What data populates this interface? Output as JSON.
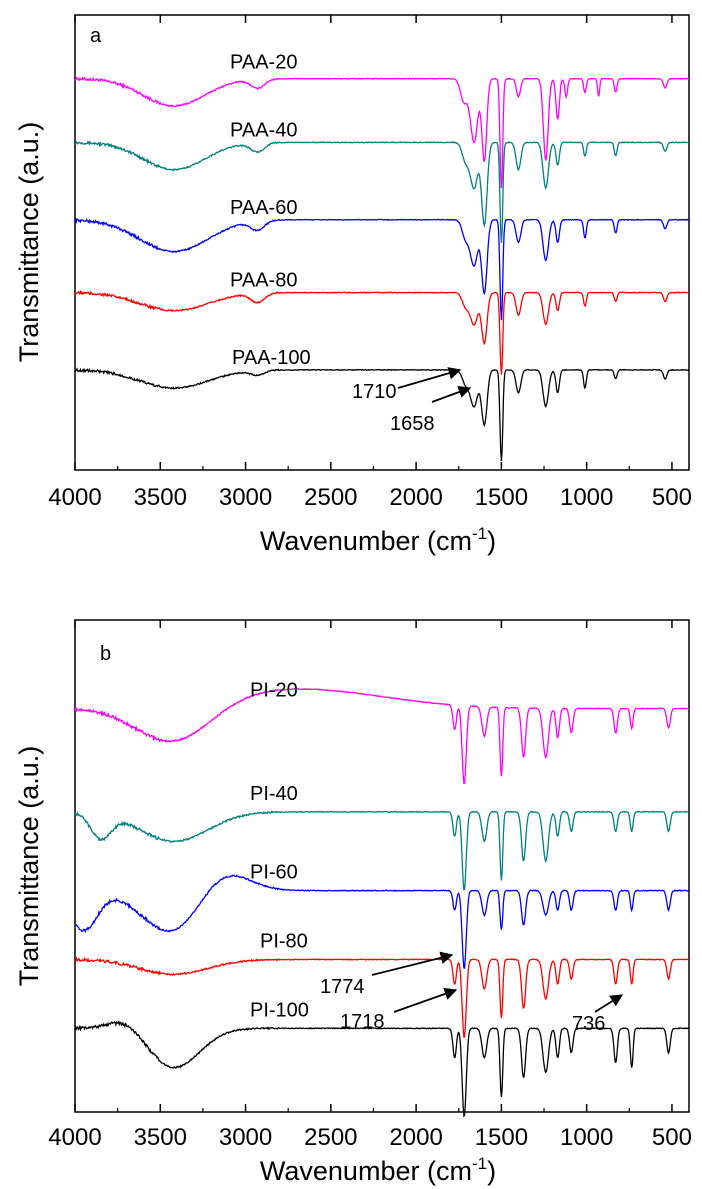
{
  "chart_data": [
    {
      "type": "line",
      "panel": "a",
      "xlabel": "Wavenumber (cm",
      "xlabel_sup": "-1",
      "xlabel_close": ")",
      "ylabel": "Transmittance (a.u.)",
      "xlim": [
        4000,
        400
      ],
      "x_reversed": true,
      "y_ticks_shown": false,
      "xticks": [
        4000,
        3500,
        3000,
        2500,
        2000,
        1500,
        1000,
        500
      ],
      "series": [
        {
          "name": "PAA-20",
          "color": "#ff00ff",
          "baseline": 0.86,
          "broad": [
            [
              3420,
              0.06,
              180
            ],
            [
              2930,
              0.02,
              40
            ]
          ],
          "peaks": [
            [
              1720,
              0.05,
              20
            ],
            [
              1660,
              0.14,
              22
            ],
            [
              1600,
              0.18,
              14
            ],
            [
              1500,
              0.24,
              8
            ],
            [
              1400,
              0.04,
              12
            ],
            [
              1240,
              0.18,
              14
            ],
            [
              1170,
              0.09,
              10
            ],
            [
              1120,
              0.04,
              8
            ],
            [
              1010,
              0.03,
              8
            ],
            [
              930,
              0.04,
              6
            ],
            [
              830,
              0.03,
              8
            ],
            [
              540,
              0.02,
              10
            ]
          ]
        },
        {
          "name": "PAA-40",
          "color": "#008080",
          "baseline": 0.72,
          "broad": [
            [
              3420,
              0.06,
              180
            ],
            [
              2930,
              0.02,
              40
            ]
          ],
          "peaks": [
            [
              1710,
              0.04,
              20
            ],
            [
              1660,
              0.1,
              22
            ],
            [
              1600,
              0.18,
              16
            ],
            [
              1500,
              0.22,
              8
            ],
            [
              1400,
              0.06,
              14
            ],
            [
              1240,
              0.1,
              16
            ],
            [
              1170,
              0.05,
              10
            ],
            [
              1010,
              0.03,
              8
            ],
            [
              830,
              0.03,
              8
            ],
            [
              540,
              0.02,
              10
            ]
          ]
        },
        {
          "name": "PAA-60",
          "color": "#0000ff",
          "baseline": 0.55,
          "broad": [
            [
              3420,
              0.07,
              200
            ],
            [
              2930,
              0.02,
              40
            ]
          ],
          "peaks": [
            [
              1710,
              0.04,
              20
            ],
            [
              1660,
              0.1,
              22
            ],
            [
              1600,
              0.16,
              16
            ],
            [
              1500,
              0.22,
              8
            ],
            [
              1400,
              0.05,
              14
            ],
            [
              1240,
              0.09,
              16
            ],
            [
              1170,
              0.05,
              10
            ],
            [
              1010,
              0.04,
              8
            ],
            [
              830,
              0.03,
              8
            ],
            [
              540,
              0.02,
              10
            ]
          ]
        },
        {
          "name": "PAA-80",
          "color": "#ff0000",
          "baseline": 0.39,
          "broad": [
            [
              3420,
              0.04,
              200
            ],
            [
              2930,
              0.02,
              40
            ]
          ],
          "peaks": [
            [
              1710,
              0.03,
              20
            ],
            [
              1660,
              0.07,
              22
            ],
            [
              1600,
              0.11,
              16
            ],
            [
              1500,
              0.18,
              8
            ],
            [
              1400,
              0.05,
              14
            ],
            [
              1240,
              0.07,
              16
            ],
            [
              1170,
              0.04,
              10
            ],
            [
              1010,
              0.03,
              8
            ],
            [
              830,
              0.02,
              8
            ],
            [
              540,
              0.02,
              10
            ]
          ]
        },
        {
          "name": "PAA-100",
          "color": "#000000",
          "baseline": 0.22,
          "broad": [
            [
              3420,
              0.04,
              200
            ],
            [
              2930,
              0.01,
              40
            ]
          ],
          "peaks": [
            [
              1710,
              0.03,
              20
            ],
            [
              1660,
              0.08,
              22
            ],
            [
              1600,
              0.12,
              16
            ],
            [
              1500,
              0.2,
              8
            ],
            [
              1400,
              0.05,
              14
            ],
            [
              1240,
              0.08,
              16
            ],
            [
              1170,
              0.05,
              10
            ],
            [
              1010,
              0.04,
              8
            ],
            [
              830,
              0.02,
              8
            ],
            [
              540,
              0.02,
              10
            ]
          ]
        }
      ],
      "annotations": [
        {
          "text": "1710",
          "x": 1710
        },
        {
          "text": "1658",
          "x": 1658
        }
      ]
    },
    {
      "type": "line",
      "panel": "b",
      "xlabel": "Wavenumber (cm",
      "xlabel_sup": "-1",
      "xlabel_close": ")",
      "ylabel": "Transmittance (a.u.)",
      "xlim": [
        4000,
        400
      ],
      "x_reversed": true,
      "y_ticks_shown": false,
      "xticks": [
        4000,
        3500,
        3000,
        2500,
        2000,
        1500,
        1000,
        500
      ],
      "series": [
        {
          "name": "PI-20",
          "color": "#ff00ff",
          "baseline": 0.82,
          "broad": [
            [
              3420,
              0.08,
              220
            ],
            [
              2700,
              -0.04,
              500
            ]
          ],
          "peaks": [
            [
              1774,
              0.05,
              10
            ],
            [
              1718,
              0.16,
              12
            ],
            [
              1600,
              0.06,
              14
            ],
            [
              1500,
              0.14,
              8
            ],
            [
              1370,
              0.1,
              12
            ],
            [
              1240,
              0.1,
              16
            ],
            [
              1170,
              0.06,
              10
            ],
            [
              1090,
              0.05,
              10
            ],
            [
              830,
              0.05,
              10
            ],
            [
              736,
              0.04,
              8
            ],
            [
              520,
              0.04,
              10
            ]
          ]
        },
        {
          "name": "PI-40",
          "color": "#008080",
          "baseline": 0.61,
          "broad": [
            [
              3420,
              0.06,
              200
            ],
            [
              3850,
              0.05,
              60
            ]
          ],
          "peaks": [
            [
              1774,
              0.05,
              10
            ],
            [
              1718,
              0.16,
              12
            ],
            [
              1600,
              0.06,
              14
            ],
            [
              1500,
              0.14,
              8
            ],
            [
              1370,
              0.1,
              12
            ],
            [
              1240,
              0.1,
              16
            ],
            [
              1170,
              0.05,
              10
            ],
            [
              1090,
              0.04,
              10
            ],
            [
              830,
              0.04,
              10
            ],
            [
              736,
              0.04,
              8
            ],
            [
              520,
              0.04,
              10
            ]
          ]
        },
        {
          "name": "PI-60",
          "color": "#0000ff",
          "baseline": 0.45,
          "broad": [
            [
              3420,
              0.09,
              180
            ],
            [
              3950,
              0.08,
              80
            ],
            [
              3150,
              -0.05,
              150
            ]
          ],
          "peaks": [
            [
              1774,
              0.04,
              10
            ],
            [
              1718,
              0.16,
              12
            ],
            [
              1600,
              0.05,
              14
            ],
            [
              1500,
              0.08,
              8
            ],
            [
              1370,
              0.07,
              12
            ],
            [
              1240,
              0.05,
              16
            ],
            [
              1170,
              0.04,
              10
            ],
            [
              1090,
              0.04,
              10
            ],
            [
              830,
              0.04,
              10
            ],
            [
              736,
              0.04,
              8
            ],
            [
              520,
              0.04,
              10
            ]
          ]
        },
        {
          "name": "PI-80",
          "color": "#ff0000",
          "baseline": 0.31,
          "broad": [
            [
              3420,
              0.03,
              200
            ]
          ],
          "peaks": [
            [
              1774,
              0.05,
              10
            ],
            [
              1718,
              0.16,
              12
            ],
            [
              1600,
              0.06,
              14
            ],
            [
              1500,
              0.12,
              8
            ],
            [
              1370,
              0.1,
              12
            ],
            [
              1240,
              0.08,
              16
            ],
            [
              1170,
              0.05,
              10
            ],
            [
              1090,
              0.04,
              10
            ],
            [
              830,
              0.05,
              10
            ],
            [
              736,
              0.05,
              8
            ],
            [
              520,
              0.04,
              10
            ]
          ]
        },
        {
          "name": "PI-100",
          "color": "#000000",
          "baseline": 0.17,
          "broad": [
            [
              3420,
              0.08,
              150
            ],
            [
              3700,
              -0.02,
              100
            ]
          ],
          "peaks": [
            [
              1774,
              0.06,
              10
            ],
            [
              1718,
              0.18,
              12
            ],
            [
              1600,
              0.06,
              14
            ],
            [
              1500,
              0.14,
              8
            ],
            [
              1370,
              0.1,
              12
            ],
            [
              1240,
              0.09,
              16
            ],
            [
              1170,
              0.06,
              10
            ],
            [
              1090,
              0.05,
              10
            ],
            [
              830,
              0.07,
              10
            ],
            [
              736,
              0.08,
              8
            ],
            [
              520,
              0.05,
              10
            ]
          ]
        }
      ],
      "annotations": [
        {
          "text": "1774",
          "x": 1774
        },
        {
          "text": "1718",
          "x": 1718
        },
        {
          "text": "736",
          "x": 736
        }
      ]
    }
  ]
}
